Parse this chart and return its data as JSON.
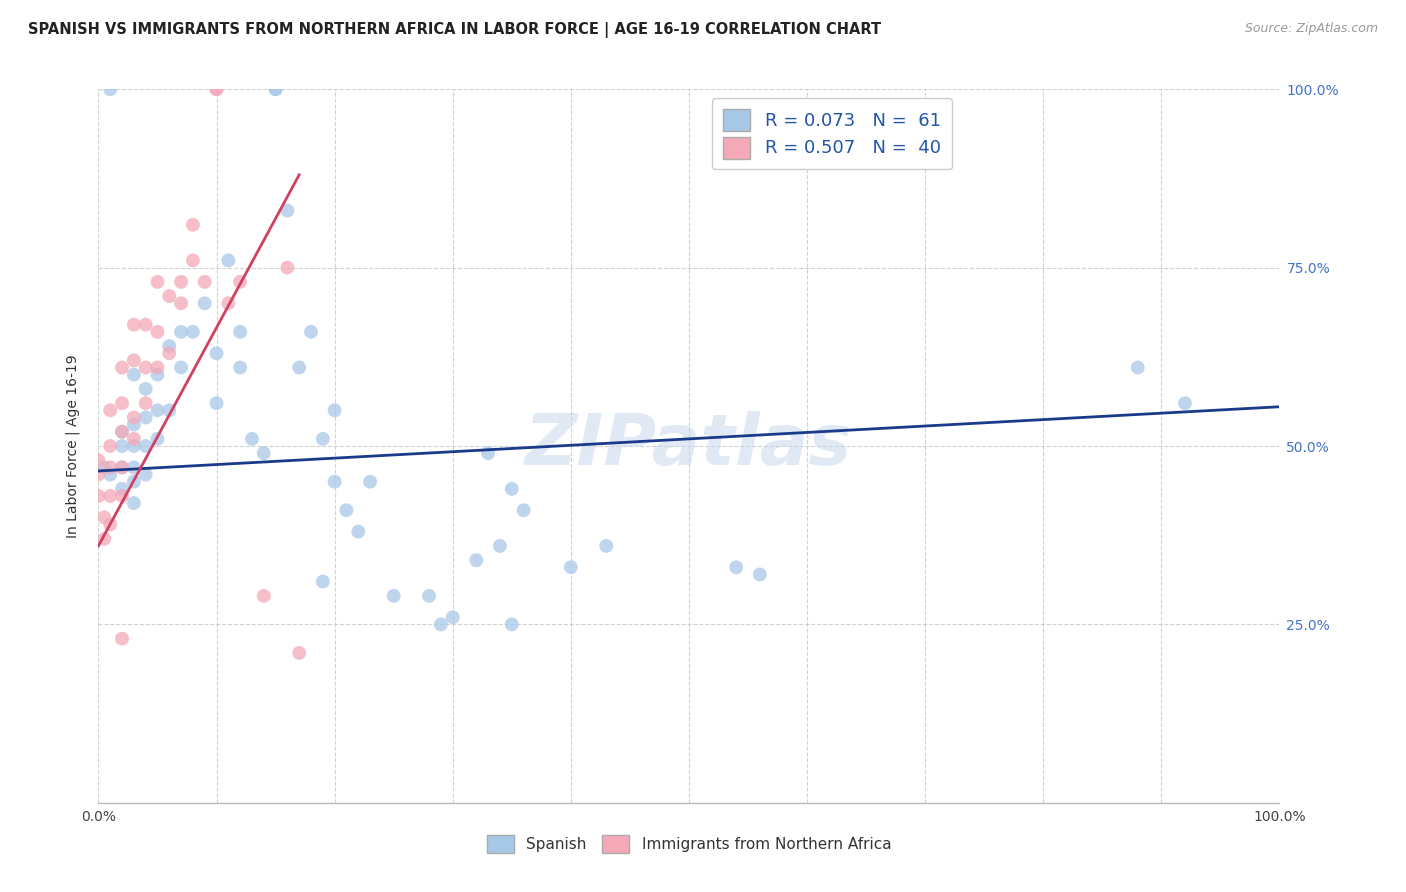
{
  "title": "SPANISH VS IMMIGRANTS FROM NORTHERN AFRICA IN LABOR FORCE | AGE 16-19 CORRELATION CHART",
  "source": "Source: ZipAtlas.com",
  "ylabel": "In Labor Force | Age 16-19",
  "xlim": [
    0.0,
    1.0
  ],
  "ylim": [
    0.0,
    1.0
  ],
  "legend_label_blue": "Spanish",
  "legend_label_pink": "Immigrants from Northern Africa",
  "blue_color": "#a8c8e8",
  "pink_color": "#f4a8b8",
  "blue_line_color": "#1a3a8a",
  "pink_line_color": "#d04060",
  "watermark": "ZIPatlas",
  "blue_scatter_x": [
    0.01,
    0.01,
    0.02,
    0.02,
    0.02,
    0.02,
    0.03,
    0.03,
    0.03,
    0.03,
    0.03,
    0.03,
    0.04,
    0.04,
    0.04,
    0.04,
    0.05,
    0.05,
    0.05,
    0.06,
    0.06,
    0.07,
    0.07,
    0.08,
    0.09,
    0.1,
    0.1,
    0.11,
    0.12,
    0.12,
    0.13,
    0.14,
    0.15,
    0.15,
    0.16,
    0.17,
    0.18,
    0.19,
    0.2,
    0.22,
    0.23,
    0.25,
    0.28,
    0.29,
    0.3,
    0.32,
    0.34,
    0.35,
    0.4,
    0.43,
    0.54,
    0.56,
    0.88,
    0.92,
    0.005,
    0.2,
    0.21,
    0.33,
    0.35,
    0.36,
    0.19
  ],
  "blue_scatter_y": [
    0.46,
    1.0,
    0.44,
    0.47,
    0.5,
    0.52,
    0.42,
    0.45,
    0.47,
    0.5,
    0.53,
    0.6,
    0.46,
    0.5,
    0.54,
    0.58,
    0.51,
    0.55,
    0.6,
    0.55,
    0.64,
    0.61,
    0.66,
    0.66,
    0.7,
    0.56,
    0.63,
    0.76,
    0.61,
    0.66,
    0.51,
    0.49,
    1.0,
    1.0,
    0.83,
    0.61,
    0.66,
    0.51,
    0.55,
    0.38,
    0.45,
    0.29,
    0.29,
    0.25,
    0.26,
    0.34,
    0.36,
    0.25,
    0.33,
    0.36,
    0.33,
    0.32,
    0.61,
    0.56,
    0.47,
    0.45,
    0.41,
    0.49,
    0.44,
    0.41,
    0.31
  ],
  "pink_scatter_x": [
    0.0,
    0.0,
    0.0,
    0.005,
    0.005,
    0.01,
    0.01,
    0.01,
    0.01,
    0.01,
    0.02,
    0.02,
    0.02,
    0.02,
    0.02,
    0.03,
    0.03,
    0.03,
    0.03,
    0.04,
    0.04,
    0.04,
    0.05,
    0.05,
    0.05,
    0.06,
    0.06,
    0.07,
    0.07,
    0.08,
    0.08,
    0.09,
    0.1,
    0.1,
    0.11,
    0.12,
    0.14,
    0.16,
    0.17,
    0.02
  ],
  "pink_scatter_y": [
    0.43,
    0.46,
    0.48,
    0.37,
    0.4,
    0.39,
    0.43,
    0.47,
    0.5,
    0.55,
    0.43,
    0.47,
    0.52,
    0.56,
    0.61,
    0.51,
    0.54,
    0.62,
    0.67,
    0.56,
    0.61,
    0.67,
    0.61,
    0.66,
    0.73,
    0.63,
    0.71,
    0.7,
    0.73,
    0.76,
    0.81,
    0.73,
    1.0,
    1.0,
    0.7,
    0.73,
    0.29,
    0.75,
    0.21,
    0.23
  ],
  "blue_line_x": [
    0.0,
    1.0
  ],
  "blue_line_y": [
    0.465,
    0.555
  ],
  "pink_line_x": [
    0.0,
    0.17
  ],
  "pink_line_y": [
    0.36,
    0.88
  ]
}
